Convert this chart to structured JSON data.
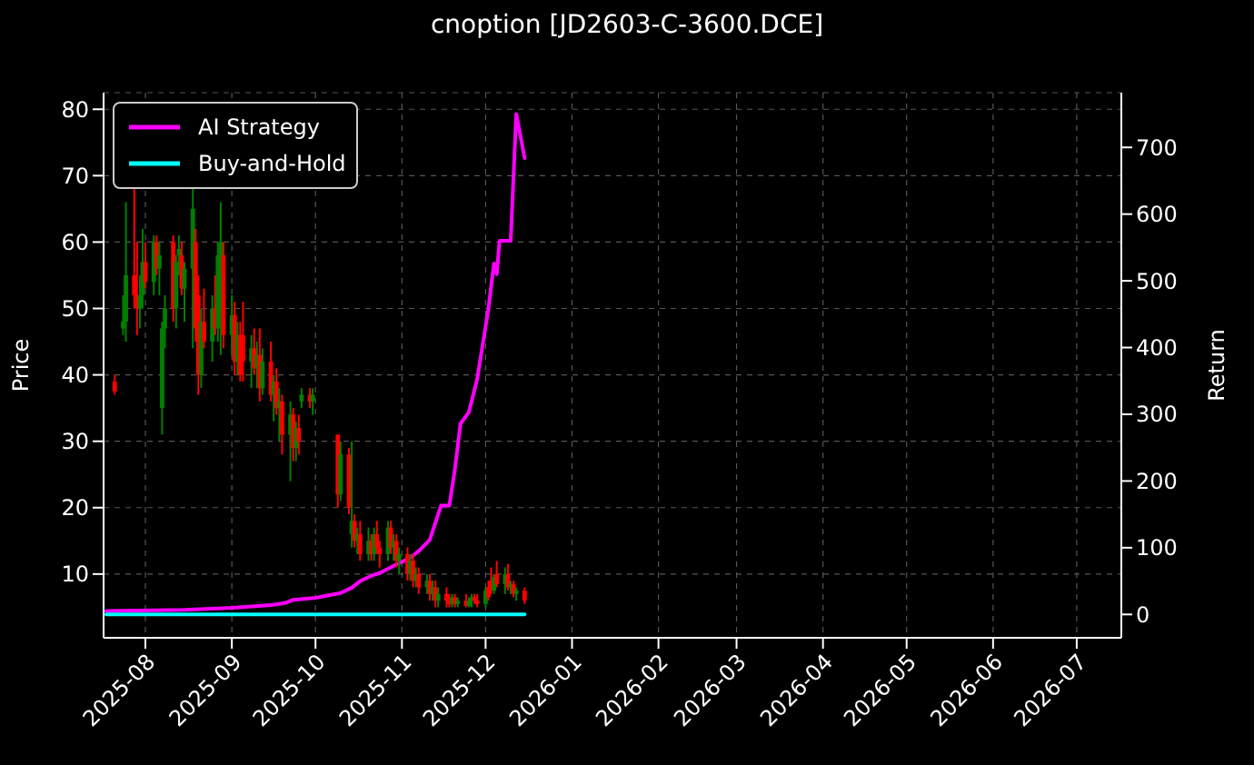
{
  "chart_data": {
    "type": "candlestick",
    "title": "cnoption [JD2603-C-3600.DCE]",
    "ylabel": "Price",
    "y2label": "Return",
    "x": [
      "2025-07-21",
      "2025-07-24",
      "2025-07-25",
      "2025-07-28",
      "2025-07-29",
      "2025-07-30",
      "2025-07-31",
      "2025-08-01",
      "2025-08-04",
      "2025-08-05",
      "2025-08-06",
      "2025-08-07",
      "2025-08-08",
      "2025-08-11",
      "2025-08-12",
      "2025-08-13",
      "2025-08-14",
      "2025-08-15",
      "2025-08-18",
      "2025-08-19",
      "2025-08-20",
      "2025-08-21",
      "2025-08-22",
      "2025-08-25",
      "2025-08-26",
      "2025-08-27",
      "2025-08-28",
      "2025-08-29",
      "2025-09-01",
      "2025-09-02",
      "2025-09-03",
      "2025-09-04",
      "2025-09-05",
      "2025-09-08",
      "2025-09-09",
      "2025-09-10",
      "2025-09-11",
      "2025-09-12",
      "2025-09-15",
      "2025-09-16",
      "2025-09-17",
      "2025-09-18",
      "2025-09-19",
      "2025-09-22",
      "2025-09-23",
      "2025-09-24",
      "2025-09-25",
      "2025-09-26",
      "2025-09-29",
      "2025-09-30",
      "2025-10-09",
      "2025-10-10",
      "2025-10-13",
      "2025-10-14",
      "2025-10-15",
      "2025-10-16",
      "2025-10-17",
      "2025-10-20",
      "2025-10-21",
      "2025-10-22",
      "2025-10-23",
      "2025-10-24",
      "2025-10-27",
      "2025-10-28",
      "2025-10-29",
      "2025-10-30",
      "2025-10-31",
      "2025-11-03",
      "2025-11-04",
      "2025-11-05",
      "2025-11-06",
      "2025-11-07",
      "2025-11-10",
      "2025-11-11",
      "2025-11-12",
      "2025-11-13",
      "2025-11-14",
      "2025-11-17",
      "2025-11-18",
      "2025-11-19",
      "2025-11-20",
      "2025-11-21",
      "2025-11-24",
      "2025-11-25",
      "2025-11-26",
      "2025-11-27",
      "2025-11-28",
      "2025-12-01",
      "2025-12-02",
      "2025-12-03",
      "2025-12-04",
      "2025-12-05",
      "2025-12-08",
      "2025-12-09",
      "2025-12-10",
      "2025-12-11",
      "2025-12-12",
      "2025-12-15"
    ],
    "ohlc": [
      [
        39,
        40,
        37,
        37.5
      ],
      [
        47,
        52,
        46,
        48
      ],
      [
        48,
        66,
        45,
        55
      ],
      [
        55,
        68,
        50,
        52
      ],
      [
        52,
        60,
        46,
        50
      ],
      [
        50,
        55,
        47,
        52
      ],
      [
        52,
        62,
        50,
        57
      ],
      [
        57,
        60,
        53,
        54
      ],
      [
        54,
        61,
        52,
        60
      ],
      [
        60,
        61,
        55,
        56
      ],
      [
        56,
        60,
        52,
        58
      ],
      [
        35,
        48,
        31,
        47
      ],
      [
        47,
        52,
        44,
        50
      ],
      [
        60,
        61,
        48,
        50
      ],
      [
        50,
        58,
        47,
        57
      ],
      [
        58,
        61,
        55,
        59
      ],
      [
        58,
        60,
        52,
        53
      ],
      [
        53,
        57,
        48,
        56
      ],
      [
        56,
        68,
        44,
        65
      ],
      [
        60,
        62,
        45,
        47
      ],
      [
        52,
        55,
        37,
        40
      ],
      [
        40,
        50,
        38,
        48
      ],
      [
        48,
        53,
        44,
        45
      ],
      [
        45,
        52,
        42,
        50
      ],
      [
        50,
        55,
        46,
        47
      ],
      [
        47,
        60,
        45,
        58
      ],
      [
        50,
        66,
        43,
        60
      ],
      [
        58,
        60,
        44,
        46
      ],
      [
        46,
        52,
        43,
        49
      ],
      [
        49,
        51,
        40,
        42
      ],
      [
        42,
        48,
        40,
        46
      ],
      [
        46,
        48,
        39,
        40
      ],
      [
        46,
        51,
        39,
        42
      ],
      [
        42,
        46,
        38,
        44
      ],
      [
        44,
        47,
        40,
        41
      ],
      [
        41,
        45,
        38,
        43
      ],
      [
        43,
        47,
        36,
        38
      ],
      [
        38,
        44,
        37,
        42
      ],
      [
        42,
        45,
        36,
        37
      ],
      [
        37,
        40,
        33,
        39
      ],
      [
        39,
        41,
        34,
        35
      ],
      [
        35,
        38,
        30,
        36
      ],
      [
        36,
        37,
        28,
        31
      ],
      [
        31,
        36,
        24,
        34
      ],
      [
        34,
        35,
        27,
        29
      ],
      [
        29,
        33,
        27,
        32
      ],
      [
        32,
        34,
        28,
        30
      ],
      [
        36,
        38,
        35,
        37
      ],
      [
        37,
        38,
        35,
        36
      ],
      [
        36,
        38,
        34,
        37
      ],
      [
        31,
        31,
        20,
        22
      ],
      [
        22,
        30,
        21,
        28
      ],
      [
        28,
        29,
        19,
        20
      ],
      [
        16,
        30,
        14,
        18
      ],
      [
        18,
        19,
        14,
        15
      ],
      [
        15,
        17,
        13,
        16
      ],
      [
        16,
        18,
        12,
        13
      ],
      [
        13,
        17,
        12,
        15
      ],
      [
        15,
        16,
        12,
        13
      ],
      [
        13,
        17,
        12,
        16
      ],
      [
        16,
        18,
        13,
        14
      ],
      [
        14,
        15,
        11,
        13
      ],
      [
        13,
        18,
        12,
        17
      ],
      [
        17,
        18,
        13,
        14
      ],
      [
        14,
        16,
        12,
        15
      ],
      [
        15,
        16,
        11,
        12
      ],
      [
        12,
        14,
        10,
        13
      ],
      [
        13,
        14,
        9,
        10
      ],
      [
        10,
        13,
        9,
        12
      ],
      [
        12,
        13,
        8,
        9
      ],
      [
        9,
        11,
        8,
        10
      ],
      [
        10,
        11,
        7,
        8
      ],
      [
        8,
        10,
        7,
        9
      ],
      [
        9,
        10,
        6,
        7
      ],
      [
        7,
        9,
        6,
        8
      ],
      [
        8,
        9,
        5,
        6
      ],
      [
        6,
        8,
        5,
        7
      ],
      [
        7,
        8,
        5,
        6
      ],
      [
        6,
        7,
        5,
        5.5
      ],
      [
        5.5,
        7,
        5,
        6.5
      ],
      [
        6.5,
        7,
        5,
        5.5
      ],
      [
        5.5,
        6.5,
        5,
        6
      ],
      [
        6,
        7,
        5,
        5.2
      ],
      [
        5.2,
        6.5,
        5,
        6
      ],
      [
        6,
        7,
        5,
        6.5
      ],
      [
        6.5,
        7,
        5.5,
        6
      ],
      [
        6,
        7,
        5,
        5.5
      ],
      [
        5.5,
        8,
        5,
        7.5
      ],
      [
        8,
        9,
        6,
        6.5
      ],
      [
        9,
        11,
        7,
        7.5
      ],
      [
        7.5,
        10,
        7,
        9.5
      ],
      [
        10,
        12,
        8,
        8.5
      ],
      [
        8.5,
        11,
        7,
        10
      ],
      [
        10,
        11.5,
        7.5,
        8
      ],
      [
        8,
        9,
        7,
        8.5
      ],
      [
        8.5,
        9,
        6.5,
        7
      ],
      [
        7,
        8,
        6,
        7.5
      ],
      [
        7.5,
        8,
        5.5,
        6
      ]
    ],
    "colors": [
      "#ff0000",
      "#008000",
      "#008000",
      "#ff0000",
      "#ff0000",
      "#008000",
      "#008000",
      "#ff0000",
      "#008000",
      "#ff0000",
      "#008000",
      "#008000",
      "#008000",
      "#ff0000",
      "#008000",
      "#008000",
      "#ff0000",
      "#008000",
      "#008000",
      "#ff0000",
      "#ff0000",
      "#008000",
      "#ff0000",
      "#008000",
      "#ff0000",
      "#008000",
      "#008000",
      "#ff0000",
      "#008000",
      "#ff0000",
      "#008000",
      "#ff0000",
      "#ff0000",
      "#008000",
      "#ff0000",
      "#008000",
      "#ff0000",
      "#008000",
      "#ff0000",
      "#008000",
      "#ff0000",
      "#008000",
      "#ff0000",
      "#008000",
      "#ff0000",
      "#008000",
      "#ff0000",
      "#008000",
      "#ff0000",
      "#008000",
      "#ff0000",
      "#008000",
      "#ff0000",
      "#008000",
      "#ff0000",
      "#008000",
      "#ff0000",
      "#008000",
      "#ff0000",
      "#008000",
      "#ff0000",
      "#ff0000",
      "#008000",
      "#ff0000",
      "#008000",
      "#ff0000",
      "#008000",
      "#ff0000",
      "#008000",
      "#ff0000",
      "#008000",
      "#ff0000",
      "#008000",
      "#ff0000",
      "#008000",
      "#ff0000",
      "#008000",
      "#ff0000",
      "#ff0000",
      "#008000",
      "#ff0000",
      "#008000",
      "#ff0000",
      "#008000",
      "#008000",
      "#ff0000",
      "#ff0000",
      "#008000",
      "#ff0000",
      "#ff0000",
      "#008000",
      "#ff0000",
      "#008000",
      "#ff0000",
      "#008000",
      "#ff0000",
      "#008000",
      "#ff0000"
    ],
    "series": [
      {
        "name": "AI Strategy",
        "type": "line",
        "axis": "y2",
        "color": "#ff00ff",
        "x": [
          "2025-07-18",
          "2025-08-15",
          "2025-09-01",
          "2025-09-15",
          "2025-09-20",
          "2025-09-23",
          "2025-10-01",
          "2025-10-10",
          "2025-10-14",
          "2025-10-17",
          "2025-10-21",
          "2025-10-24",
          "2025-10-30",
          "2025-11-04",
          "2025-11-07",
          "2025-11-11",
          "2025-11-15",
          "2025-11-18",
          "2025-11-20",
          "2025-11-22",
          "2025-11-25",
          "2025-11-28",
          "2025-12-02",
          "2025-12-04",
          "2025-12-05",
          "2025-12-06",
          "2025-12-10",
          "2025-12-11",
          "2025-12-12",
          "2025-12-15"
        ],
        "values": [
          5,
          7,
          10,
          14,
          17,
          22,
          25,
          32,
          40,
          50,
          58,
          62,
          75,
          85,
          95,
          112,
          163,
          163,
          218,
          286,
          303,
          353,
          458,
          526,
          510,
          560,
          560,
          655,
          750,
          684
        ]
      },
      {
        "name": "Buy-and-Hold",
        "type": "line",
        "axis": "y2",
        "color": "#00ffff",
        "x": [
          "2025-07-18",
          "2025-12-15"
        ],
        "values": [
          0,
          0
        ]
      }
    ],
    "xlim": [
      "2025-07-17",
      "2026-07-17"
    ],
    "xticks": [
      "2025-08",
      "2025-09",
      "2025-10",
      "2025-11",
      "2025-12",
      "2026-01",
      "2026-02",
      "2026-03",
      "2026-04",
      "2026-05",
      "2026-06",
      "2026-07"
    ],
    "ylim": [
      0.4,
      82.5
    ],
    "yticks": [
      10,
      20,
      30,
      40,
      50,
      60,
      70,
      80
    ],
    "y2lim": [
      -35,
      782
    ],
    "y2ticks": [
      0,
      100,
      200,
      300,
      400,
      500,
      600,
      700
    ],
    "grid": true,
    "legend": "top left"
  }
}
